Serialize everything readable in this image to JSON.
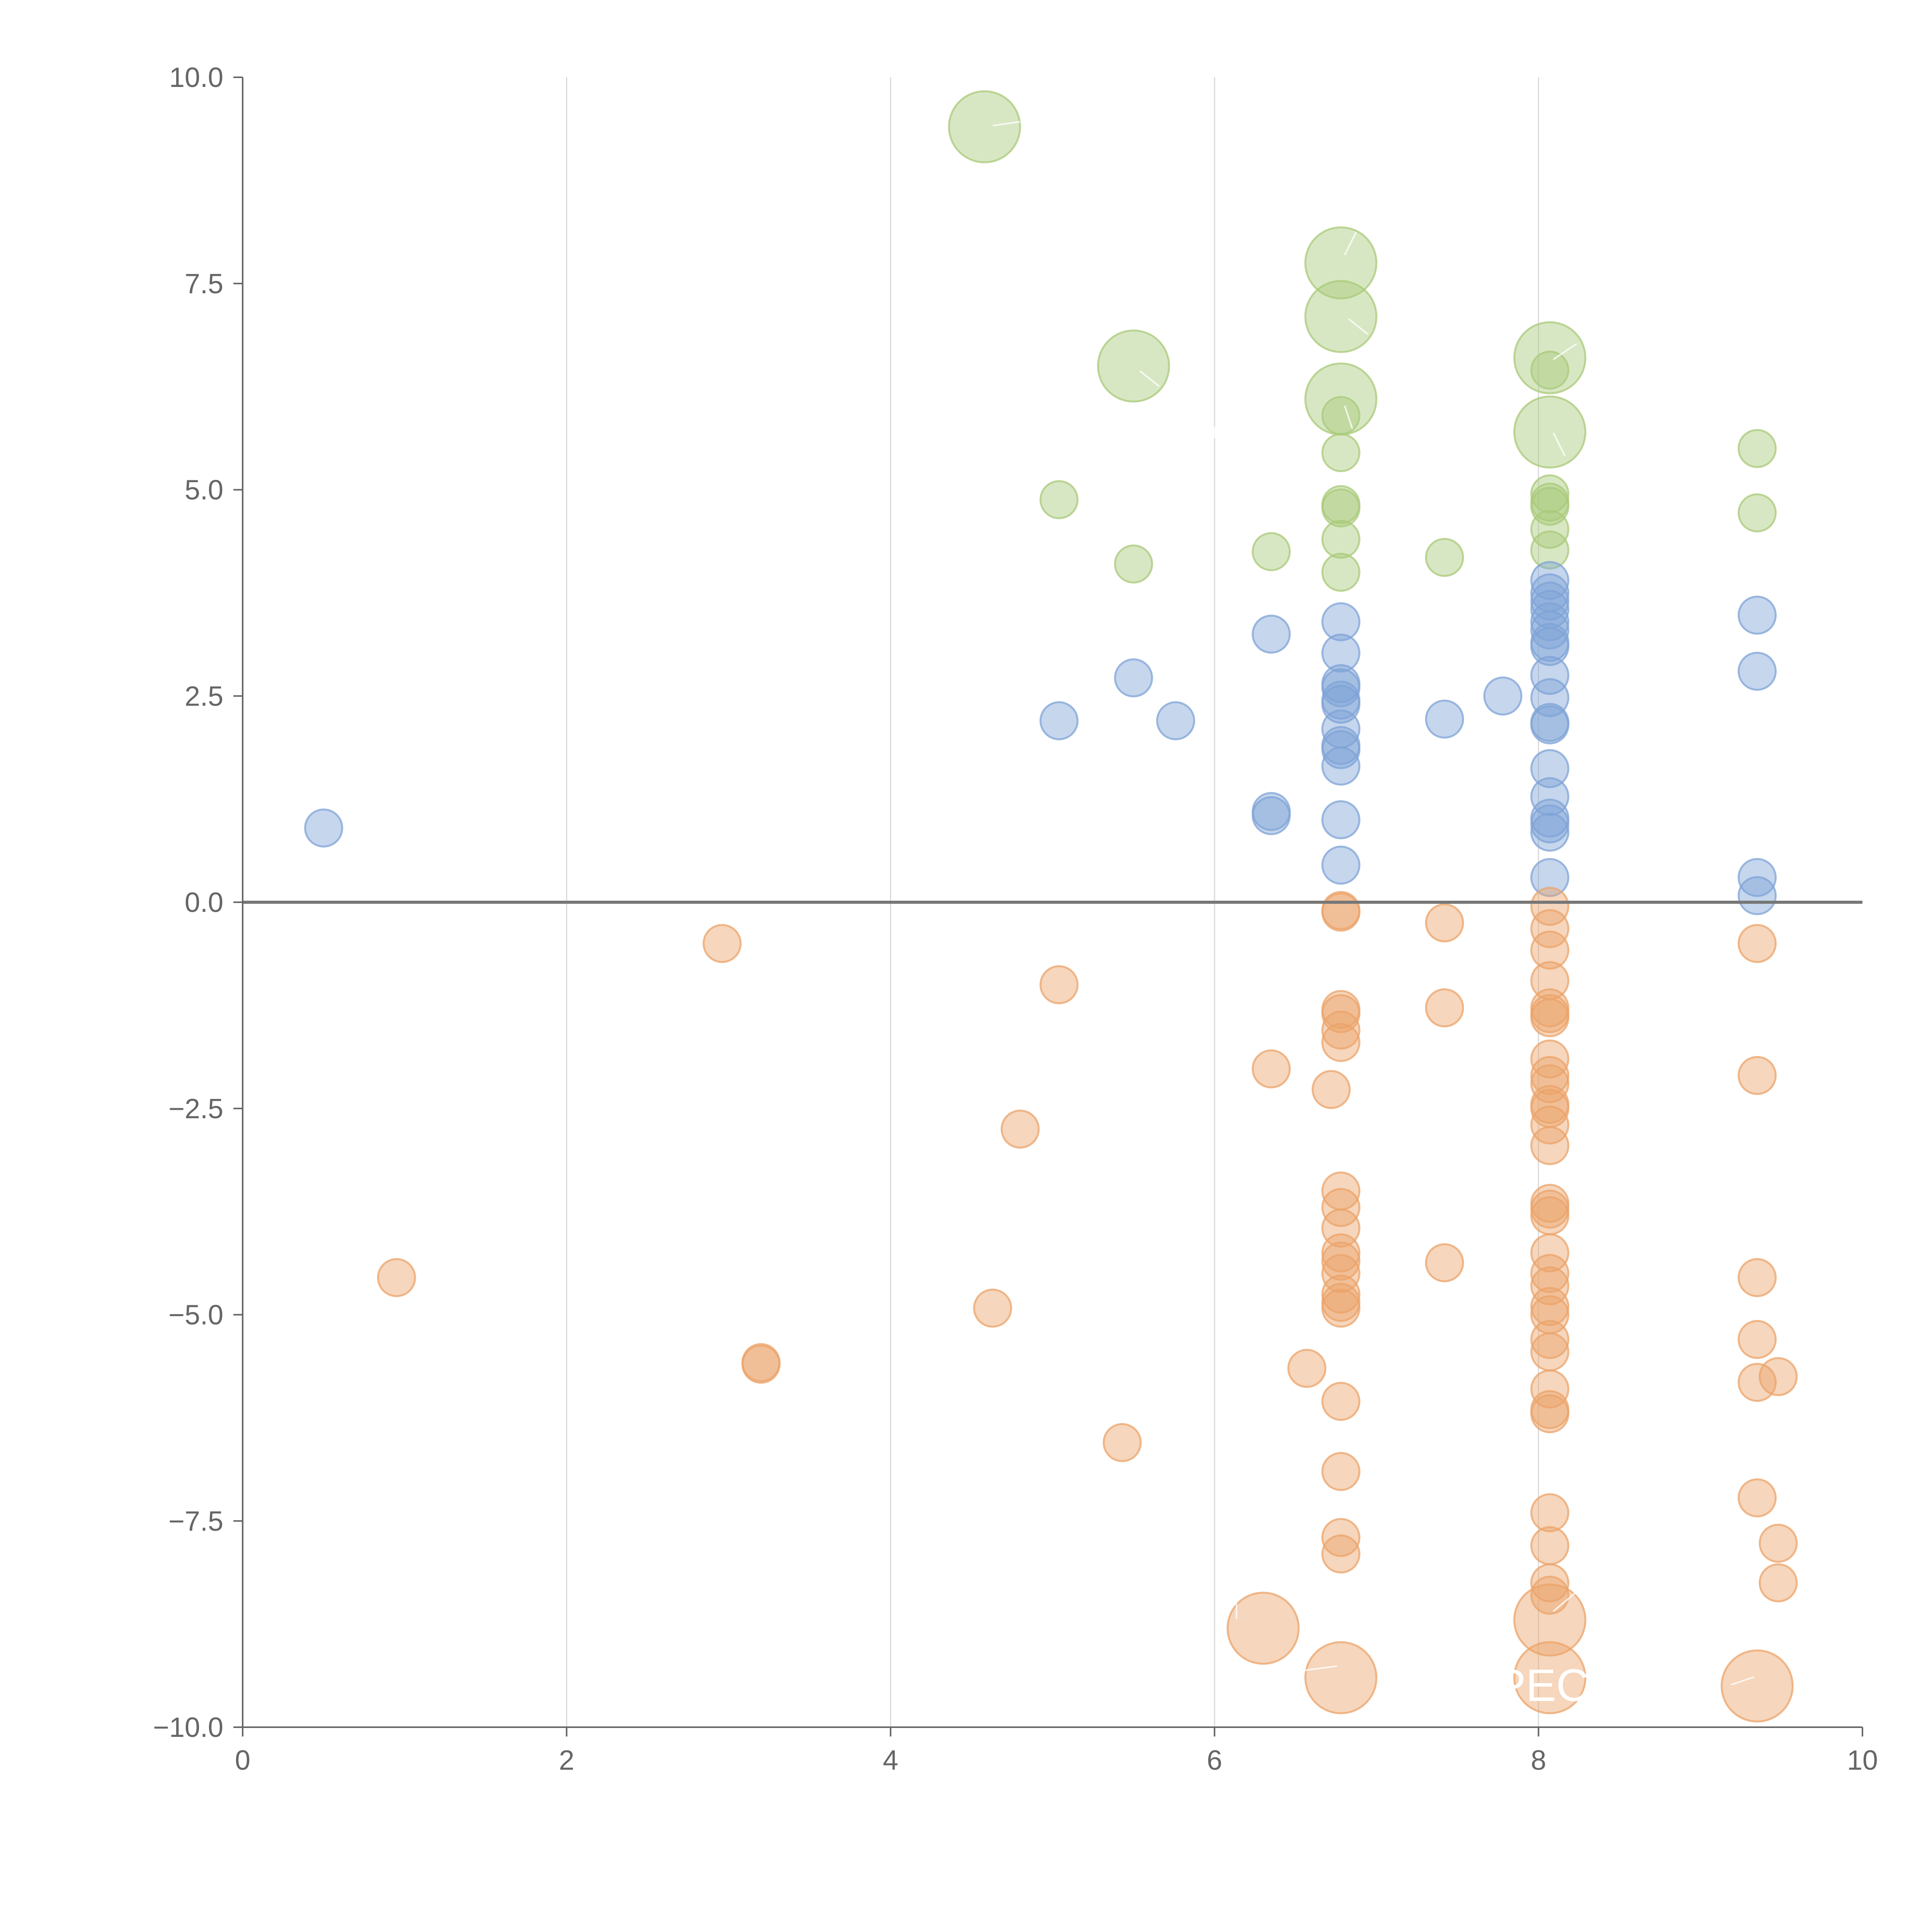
{
  "chart_data": {
    "type": "scatter",
    "xlim": [
      0,
      10
    ],
    "ylim": [
      -10,
      10
    ],
    "x_ticks": [
      "0",
      "2",
      "4",
      "6",
      "8",
      "10"
    ],
    "y_ticks": [
      "10.0",
      "7.5",
      "5.0",
      "2.5",
      "0.0",
      "−2.5",
      "−5.0",
      "−7.5",
      "−10.0"
    ],
    "grid": "vertical",
    "reference_line": 0,
    "overlay_label": "PEC",
    "series": [
      {
        "color": "#a9c97a",
        "points": [
          [
            4.58,
            9.4,
            "large"
          ],
          [
            6.78,
            7.75,
            "large"
          ],
          [
            6.78,
            7.1,
            "large"
          ],
          [
            5.5,
            6.5,
            "large"
          ],
          [
            6.78,
            6.1,
            "large"
          ],
          [
            8.07,
            6.6,
            "large"
          ],
          [
            8.07,
            5.7,
            "large"
          ],
          [
            8.07,
            6.45
          ],
          [
            6.78,
            5.9
          ],
          [
            6.78,
            5.45
          ],
          [
            9.35,
            5.5
          ],
          [
            5.04,
            4.88
          ],
          [
            6.78,
            4.82
          ],
          [
            6.78,
            4.78
          ],
          [
            8.07,
            4.95
          ],
          [
            8.07,
            4.85
          ],
          [
            8.07,
            4.8
          ],
          [
            9.35,
            4.72
          ],
          [
            8.07,
            4.52
          ],
          [
            6.78,
            4.4
          ],
          [
            8.07,
            4.27
          ],
          [
            6.35,
            4.25
          ],
          [
            7.42,
            4.18
          ],
          [
            5.5,
            4.1
          ],
          [
            6.78,
            4.0
          ]
        ]
      },
      {
        "color": "#7fa3d6",
        "points": [
          [
            0.5,
            0.9
          ],
          [
            5.04,
            2.2
          ],
          [
            5.5,
            2.72
          ],
          [
            5.76,
            2.2
          ],
          [
            6.35,
            3.25
          ],
          [
            6.35,
            1.1
          ],
          [
            6.35,
            1.05
          ],
          [
            6.78,
            3.4
          ],
          [
            6.78,
            3.02
          ],
          [
            6.78,
            2.65
          ],
          [
            6.78,
            2.6
          ],
          [
            6.78,
            2.45
          ],
          [
            6.78,
            2.4
          ],
          [
            6.78,
            2.1
          ],
          [
            6.78,
            1.9
          ],
          [
            6.78,
            1.85
          ],
          [
            6.78,
            1.65
          ],
          [
            6.78,
            1.0
          ],
          [
            6.78,
            0.45
          ],
          [
            7.42,
            2.22
          ],
          [
            7.78,
            2.5
          ],
          [
            8.07,
            3.9
          ],
          [
            8.07,
            3.75
          ],
          [
            8.07,
            3.65
          ],
          [
            8.07,
            3.55
          ],
          [
            8.07,
            3.4
          ],
          [
            8.07,
            3.3
          ],
          [
            8.07,
            3.15
          ],
          [
            8.07,
            3.1
          ],
          [
            8.07,
            2.75
          ],
          [
            8.07,
            2.48
          ],
          [
            8.07,
            2.18
          ],
          [
            8.07,
            2.15
          ],
          [
            8.07,
            1.62
          ],
          [
            8.07,
            1.28
          ],
          [
            8.07,
            1.02
          ],
          [
            8.07,
            0.95
          ],
          [
            8.07,
            0.85
          ],
          [
            8.07,
            0.3
          ],
          [
            9.35,
            3.48
          ],
          [
            9.35,
            2.8
          ],
          [
            9.35,
            0.3
          ],
          [
            9.35,
            0.08
          ]
        ]
      },
      {
        "color": "#eba36a",
        "points": [
          [
            6.3,
            -8.8,
            "large"
          ],
          [
            6.78,
            -9.4,
            "large"
          ],
          [
            8.07,
            -8.7,
            "large"
          ],
          [
            8.07,
            -9.4,
            "large"
          ],
          [
            9.35,
            -9.5,
            "large"
          ],
          [
            0.95,
            -4.55
          ],
          [
            2.96,
            -0.5
          ],
          [
            3.2,
            -5.58
          ],
          [
            3.2,
            -5.6
          ],
          [
            4.63,
            -4.92
          ],
          [
            4.8,
            -2.75
          ],
          [
            5.04,
            -1.0
          ],
          [
            5.43,
            -6.55
          ],
          [
            6.35,
            -2.02
          ],
          [
            6.57,
            -5.65
          ],
          [
            6.72,
            -2.27
          ],
          [
            6.78,
            -0.1
          ],
          [
            6.78,
            -0.12
          ],
          [
            6.78,
            -1.3
          ],
          [
            6.78,
            -1.35
          ],
          [
            6.78,
            -1.55
          ],
          [
            6.78,
            -1.7
          ],
          [
            6.78,
            -3.5
          ],
          [
            6.78,
            -3.7
          ],
          [
            6.78,
            -3.95
          ],
          [
            6.78,
            -4.25
          ],
          [
            6.78,
            -4.35
          ],
          [
            6.78,
            -4.5
          ],
          [
            6.78,
            -4.75
          ],
          [
            6.78,
            -4.85
          ],
          [
            6.78,
            -4.92
          ],
          [
            6.78,
            -6.05
          ],
          [
            6.78,
            -6.9
          ],
          [
            6.78,
            -7.7
          ],
          [
            6.78,
            -7.9
          ],
          [
            7.42,
            -0.25
          ],
          [
            7.42,
            -1.28
          ],
          [
            7.42,
            -4.37
          ],
          [
            8.07,
            -0.05
          ],
          [
            8.07,
            -0.32
          ],
          [
            8.07,
            -0.58
          ],
          [
            8.07,
            -0.95
          ],
          [
            8.07,
            -1.28
          ],
          [
            8.07,
            -1.35
          ],
          [
            8.07,
            -1.4
          ],
          [
            8.07,
            -1.9
          ],
          [
            8.07,
            -2.1
          ],
          [
            8.07,
            -2.2
          ],
          [
            8.07,
            -2.45
          ],
          [
            8.07,
            -2.5
          ],
          [
            8.07,
            -2.7
          ],
          [
            8.07,
            -2.95
          ],
          [
            8.07,
            -3.65
          ],
          [
            8.07,
            -3.72
          ],
          [
            8.07,
            -3.8
          ],
          [
            8.07,
            -4.25
          ],
          [
            8.07,
            -4.5
          ],
          [
            8.07,
            -4.65
          ],
          [
            8.07,
            -4.9
          ],
          [
            8.07,
            -5.0
          ],
          [
            8.07,
            -5.3
          ],
          [
            8.07,
            -5.45
          ],
          [
            8.07,
            -5.9
          ],
          [
            8.07,
            -6.15
          ],
          [
            8.07,
            -6.2
          ],
          [
            8.07,
            -7.4
          ],
          [
            8.07,
            -7.8
          ],
          [
            8.07,
            -8.25
          ],
          [
            8.07,
            -8.4
          ],
          [
            9.35,
            -0.5
          ],
          [
            9.35,
            -2.1
          ],
          [
            9.35,
            -4.55
          ],
          [
            9.35,
            -5.3
          ],
          [
            9.35,
            -5.82
          ],
          [
            9.48,
            -5.75
          ],
          [
            9.35,
            -7.22
          ],
          [
            9.48,
            -7.77
          ],
          [
            9.48,
            -8.25
          ]
        ]
      }
    ]
  }
}
